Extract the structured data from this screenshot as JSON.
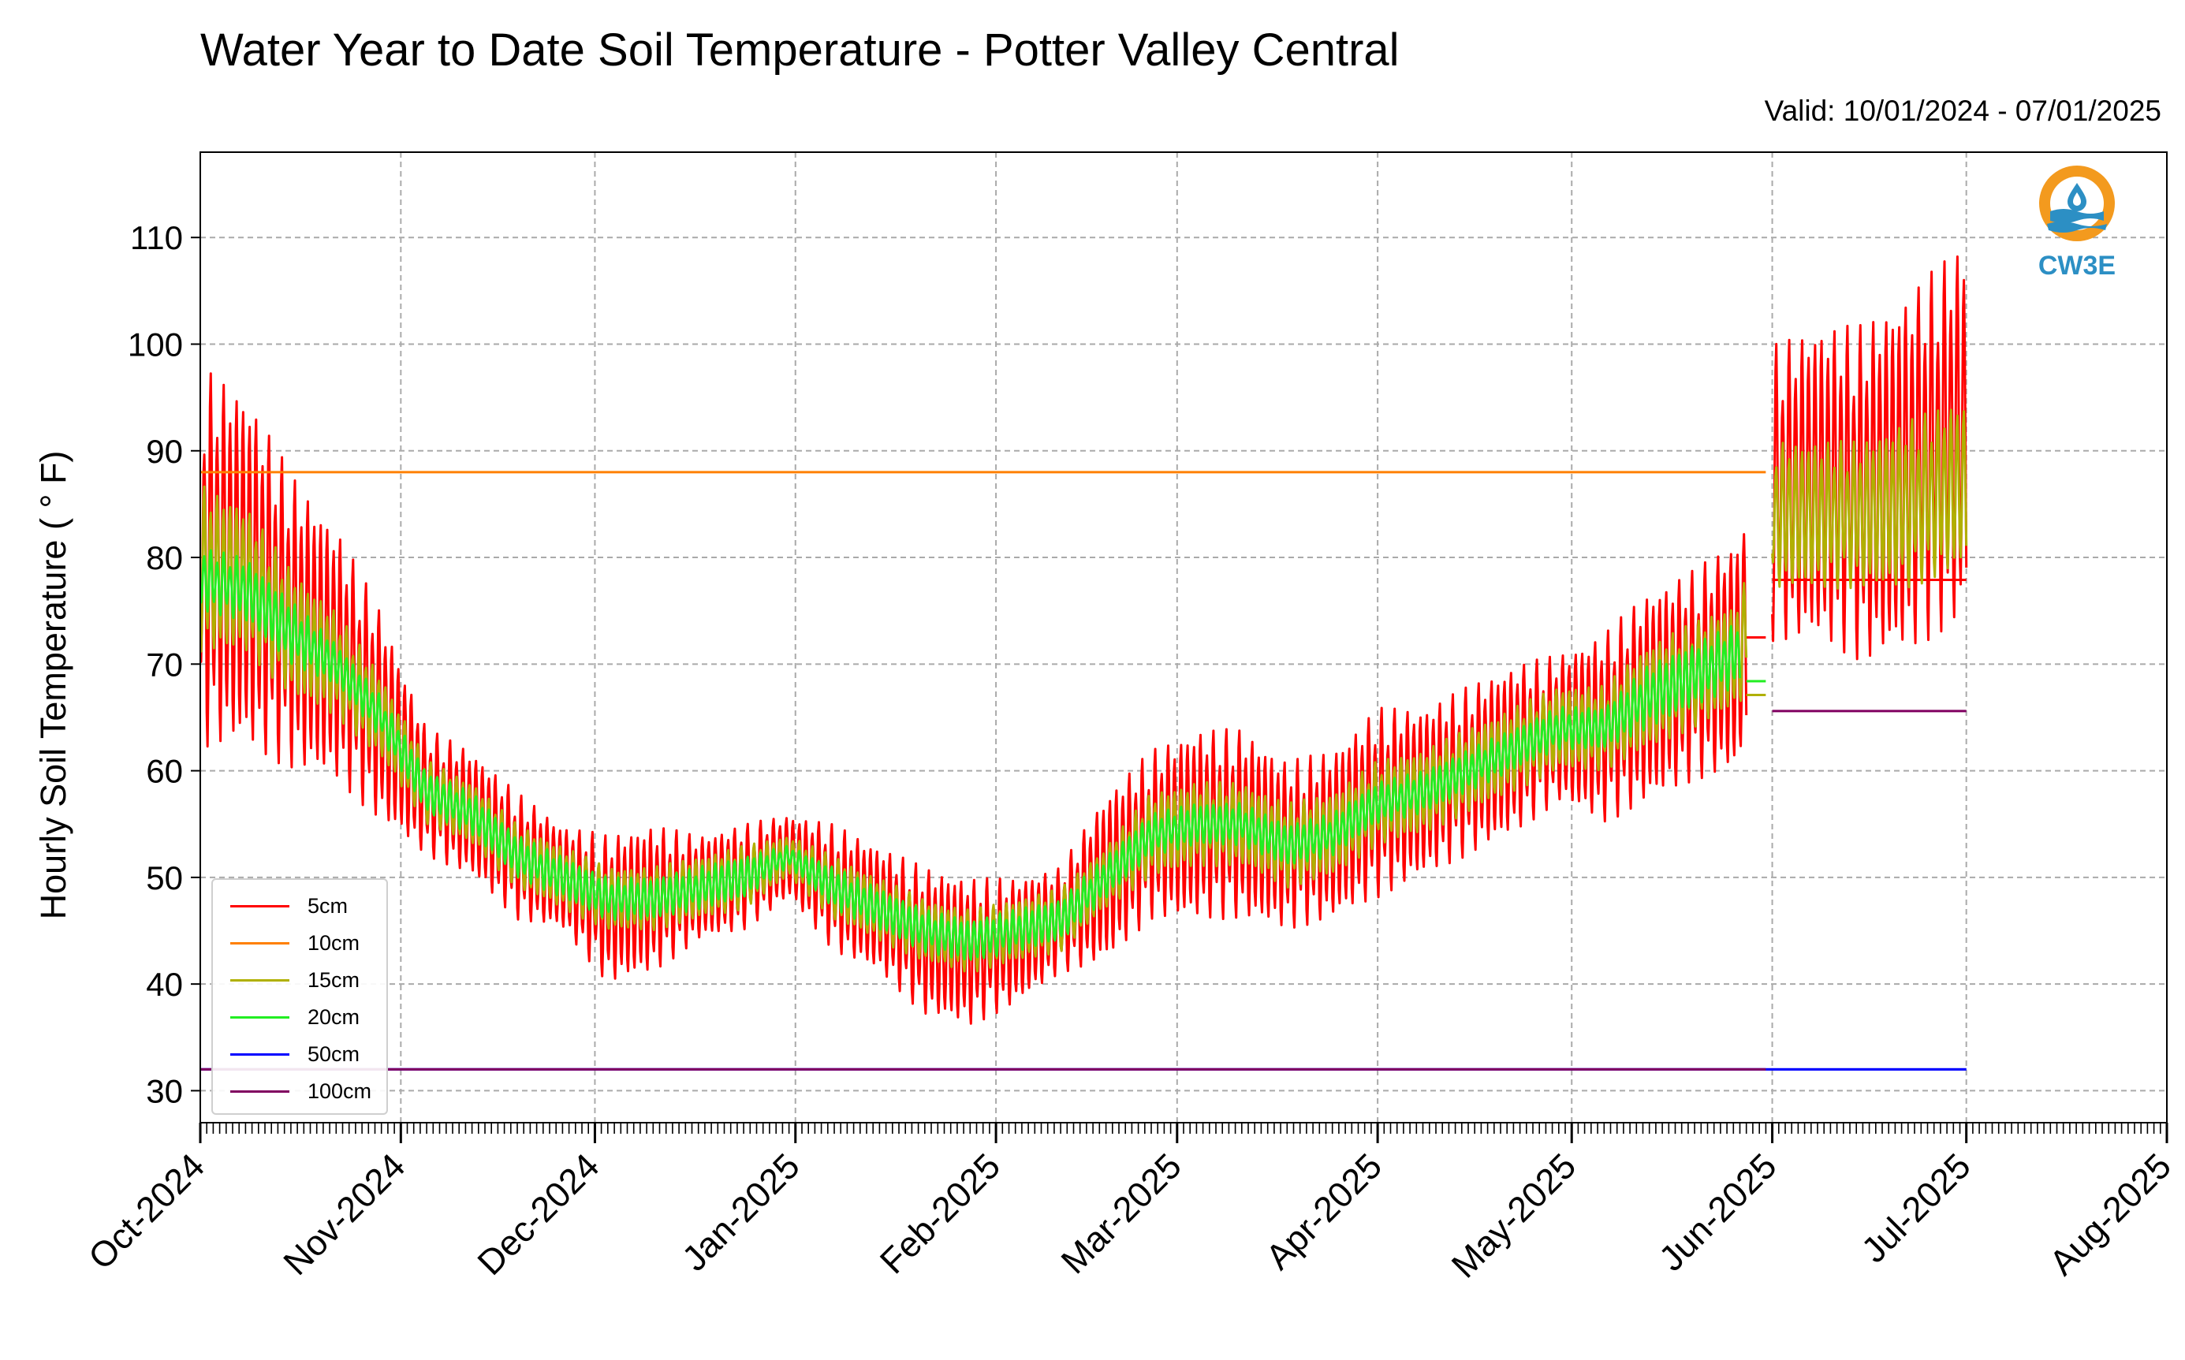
{
  "title": "Water Year to Date Soil Temperature - Potter Valley Central",
  "valid": "Valid: 10/01/2024 - 07/01/2025",
  "logo": {
    "text": "CW3E",
    "icon": "cw3e-water-drop-logo-icon",
    "colors": {
      "orange": "#f39a1e",
      "blue": "#2c8fc4"
    }
  },
  "chart_data": {
    "type": "line",
    "title": "Water Year to Date Soil Temperature - Potter Valley Central",
    "xlabel": "",
    "ylabel": "Hourly Soil Temperature ( ° F)",
    "ylim": [
      27,
      118
    ],
    "y_ticks": [
      30,
      40,
      50,
      60,
      70,
      80,
      90,
      100,
      110
    ],
    "x_range": [
      "2024-10-01",
      "2025-08-01"
    ],
    "x_ticks": [
      {
        "date": "2024-10-01",
        "label": "Oct-2024"
      },
      {
        "date": "2024-11-01",
        "label": "Nov-2024"
      },
      {
        "date": "2024-12-01",
        "label": "Dec-2024"
      },
      {
        "date": "2025-01-01",
        "label": "Jan-2025"
      },
      {
        "date": "2025-02-01",
        "label": "Feb-2025"
      },
      {
        "date": "2025-03-01",
        "label": "Mar-2025"
      },
      {
        "date": "2025-04-01",
        "label": "Apr-2025"
      },
      {
        "date": "2025-05-01",
        "label": "May-2025"
      },
      {
        "date": "2025-06-01",
        "label": "Jun-2025"
      },
      {
        "date": "2025-07-01",
        "label": "Jul-2025"
      },
      {
        "date": "2025-08-01",
        "label": "Aug-2025"
      }
    ],
    "grid": true,
    "legend_position": "lower-left",
    "series": [
      {
        "name": "5cm",
        "color": "#ff0000",
        "x": [
          "2024-10-01",
          "2024-10-08",
          "2024-10-15",
          "2024-10-22",
          "2024-10-29",
          "2024-11-05",
          "2024-11-12",
          "2024-11-19",
          "2024-11-26",
          "2024-12-03",
          "2024-12-10",
          "2024-12-17",
          "2024-12-24",
          "2024-12-31",
          "2025-01-07",
          "2025-01-14",
          "2025-01-21",
          "2025-01-28",
          "2025-02-04",
          "2025-02-11",
          "2025-02-18",
          "2025-02-25",
          "2025-03-04",
          "2025-03-11",
          "2025-03-18",
          "2025-03-25",
          "2025-04-01",
          "2025-04-08",
          "2025-04-15",
          "2025-04-22",
          "2025-04-29",
          "2025-05-06",
          "2025-05-13",
          "2025-05-20",
          "2025-05-27",
          "2025-06-01",
          "2025-06-08",
          "2025-06-15",
          "2025-06-22",
          "2025-07-01"
        ],
        "mean": [
          80,
          79,
          74,
          71,
          65,
          58,
          56,
          52,
          50,
          47,
          48,
          49,
          50,
          52,
          49,
          47,
          44,
          43,
          44,
          46,
          50,
          54,
          55,
          55,
          53,
          54,
          57,
          58,
          60,
          62,
          64,
          64,
          67,
          69,
          71,
          86,
          87,
          86,
          88,
          92
        ],
        "amplitude": [
          18,
          17,
          14,
          12,
          10,
          6,
          6,
          6,
          5,
          7,
          7,
          5,
          5,
          4,
          6,
          6,
          7,
          7,
          6,
          5,
          8,
          8,
          9,
          9,
          8,
          8,
          9,
          8,
          8,
          8,
          7,
          9,
          10,
          10,
          11,
          14,
          15,
          16,
          17,
          18
        ],
        "x2": [
          "2025-05-28",
          "2025-05-31"
        ],
        "y2": [
          72.5,
          72.5
        ],
        "x3": [
          "2025-06-01",
          "2025-07-01"
        ],
        "y3": [
          77.9,
          77.9
        ]
      },
      {
        "name": "10cm",
        "color": "#ff8000",
        "x": [
          "2024-10-01",
          "2025-05-31"
        ],
        "y": [
          88,
          88
        ]
      },
      {
        "name": "15cm",
        "color": "#b0b000",
        "x": [
          "2024-10-01",
          "2024-10-08",
          "2024-10-15",
          "2024-10-22",
          "2024-10-29",
          "2024-11-05",
          "2024-11-12",
          "2024-11-19",
          "2024-11-26",
          "2024-12-03",
          "2024-12-10",
          "2024-12-17",
          "2024-12-24",
          "2024-12-31",
          "2025-01-07",
          "2025-01-14",
          "2025-01-21",
          "2025-01-28",
          "2025-02-04",
          "2025-02-11",
          "2025-02-18",
          "2025-02-25",
          "2025-03-04",
          "2025-03-11",
          "2025-03-18",
          "2025-03-25",
          "2025-04-01",
          "2025-04-08",
          "2025-04-15",
          "2025-04-22",
          "2025-04-29",
          "2025-05-06",
          "2025-05-13",
          "2025-05-20",
          "2025-05-27",
          "2025-06-01",
          "2025-06-08",
          "2025-06-15",
          "2025-06-22",
          "2025-07-01"
        ],
        "mean": [
          79,
          78,
          73,
          70,
          65,
          58,
          56,
          52,
          50,
          48,
          48,
          49,
          50,
          52,
          49,
          47,
          45,
          44,
          45,
          46,
          50,
          54,
          55,
          55,
          53,
          54,
          57,
          58,
          60,
          62,
          64,
          64,
          67,
          69,
          71,
          84,
          84,
          84,
          85,
          87
        ],
        "amplitude": [
          8,
          7,
          6,
          5,
          4,
          3,
          3,
          3,
          3,
          3,
          3,
          3,
          3,
          2,
          3,
          3,
          3,
          3,
          3,
          3,
          3,
          4,
          4,
          4,
          4,
          4,
          4,
          4,
          4,
          4,
          4,
          4,
          5,
          5,
          5,
          7,
          7,
          7,
          8,
          8
        ],
        "x2": [
          "2025-05-28",
          "2025-05-31"
        ],
        "y2": [
          67.1,
          67.1
        ]
      },
      {
        "name": "20cm",
        "color": "#22ee22",
        "x": [
          "2024-10-01",
          "2024-10-08",
          "2024-10-15",
          "2024-10-22",
          "2024-10-29",
          "2024-11-05",
          "2024-11-12",
          "2024-11-19",
          "2024-11-26",
          "2024-12-03",
          "2024-12-10",
          "2024-12-17",
          "2024-12-24",
          "2024-12-31",
          "2025-01-07",
          "2025-01-14",
          "2025-01-21",
          "2025-01-28",
          "2025-02-04",
          "2025-02-11",
          "2025-02-18",
          "2025-02-25",
          "2025-03-04",
          "2025-03-11",
          "2025-03-18",
          "2025-03-25",
          "2025-04-01",
          "2025-04-08",
          "2025-04-15",
          "2025-04-22",
          "2025-04-29",
          "2025-05-06",
          "2025-05-13",
          "2025-05-20",
          "2025-05-27"
        ],
        "mean": [
          78,
          77,
          73,
          70,
          65,
          58,
          56,
          52,
          50,
          48,
          48,
          49,
          50,
          52,
          49,
          47,
          45,
          44,
          45,
          46,
          50,
          54,
          55,
          55,
          53,
          54,
          57,
          58,
          60,
          62,
          64,
          64,
          67,
          69,
          71
        ],
        "amplitude": [
          3,
          3,
          3,
          2,
          2,
          2,
          2,
          2,
          2,
          2,
          2,
          2,
          2,
          1,
          2,
          2,
          2,
          2,
          2,
          2,
          2,
          2,
          2,
          2,
          2,
          2,
          2,
          2,
          2,
          2,
          2,
          2,
          3,
          3,
          3
        ],
        "x2": [
          "2025-05-28",
          "2025-05-31"
        ],
        "y2": [
          68.4,
          68.4
        ]
      },
      {
        "name": "50cm",
        "color": "#0000ff",
        "x": [
          "2024-10-01",
          "2025-07-01"
        ],
        "y": [
          32,
          32
        ]
      },
      {
        "name": "100cm",
        "color": "#800060",
        "x": [
          "2024-10-01",
          "2025-05-31"
        ],
        "y": [
          32,
          32
        ],
        "x2": [
          "2025-06-01",
          "2025-07-01"
        ],
        "y2": [
          65.6,
          65.6
        ]
      }
    ]
  }
}
